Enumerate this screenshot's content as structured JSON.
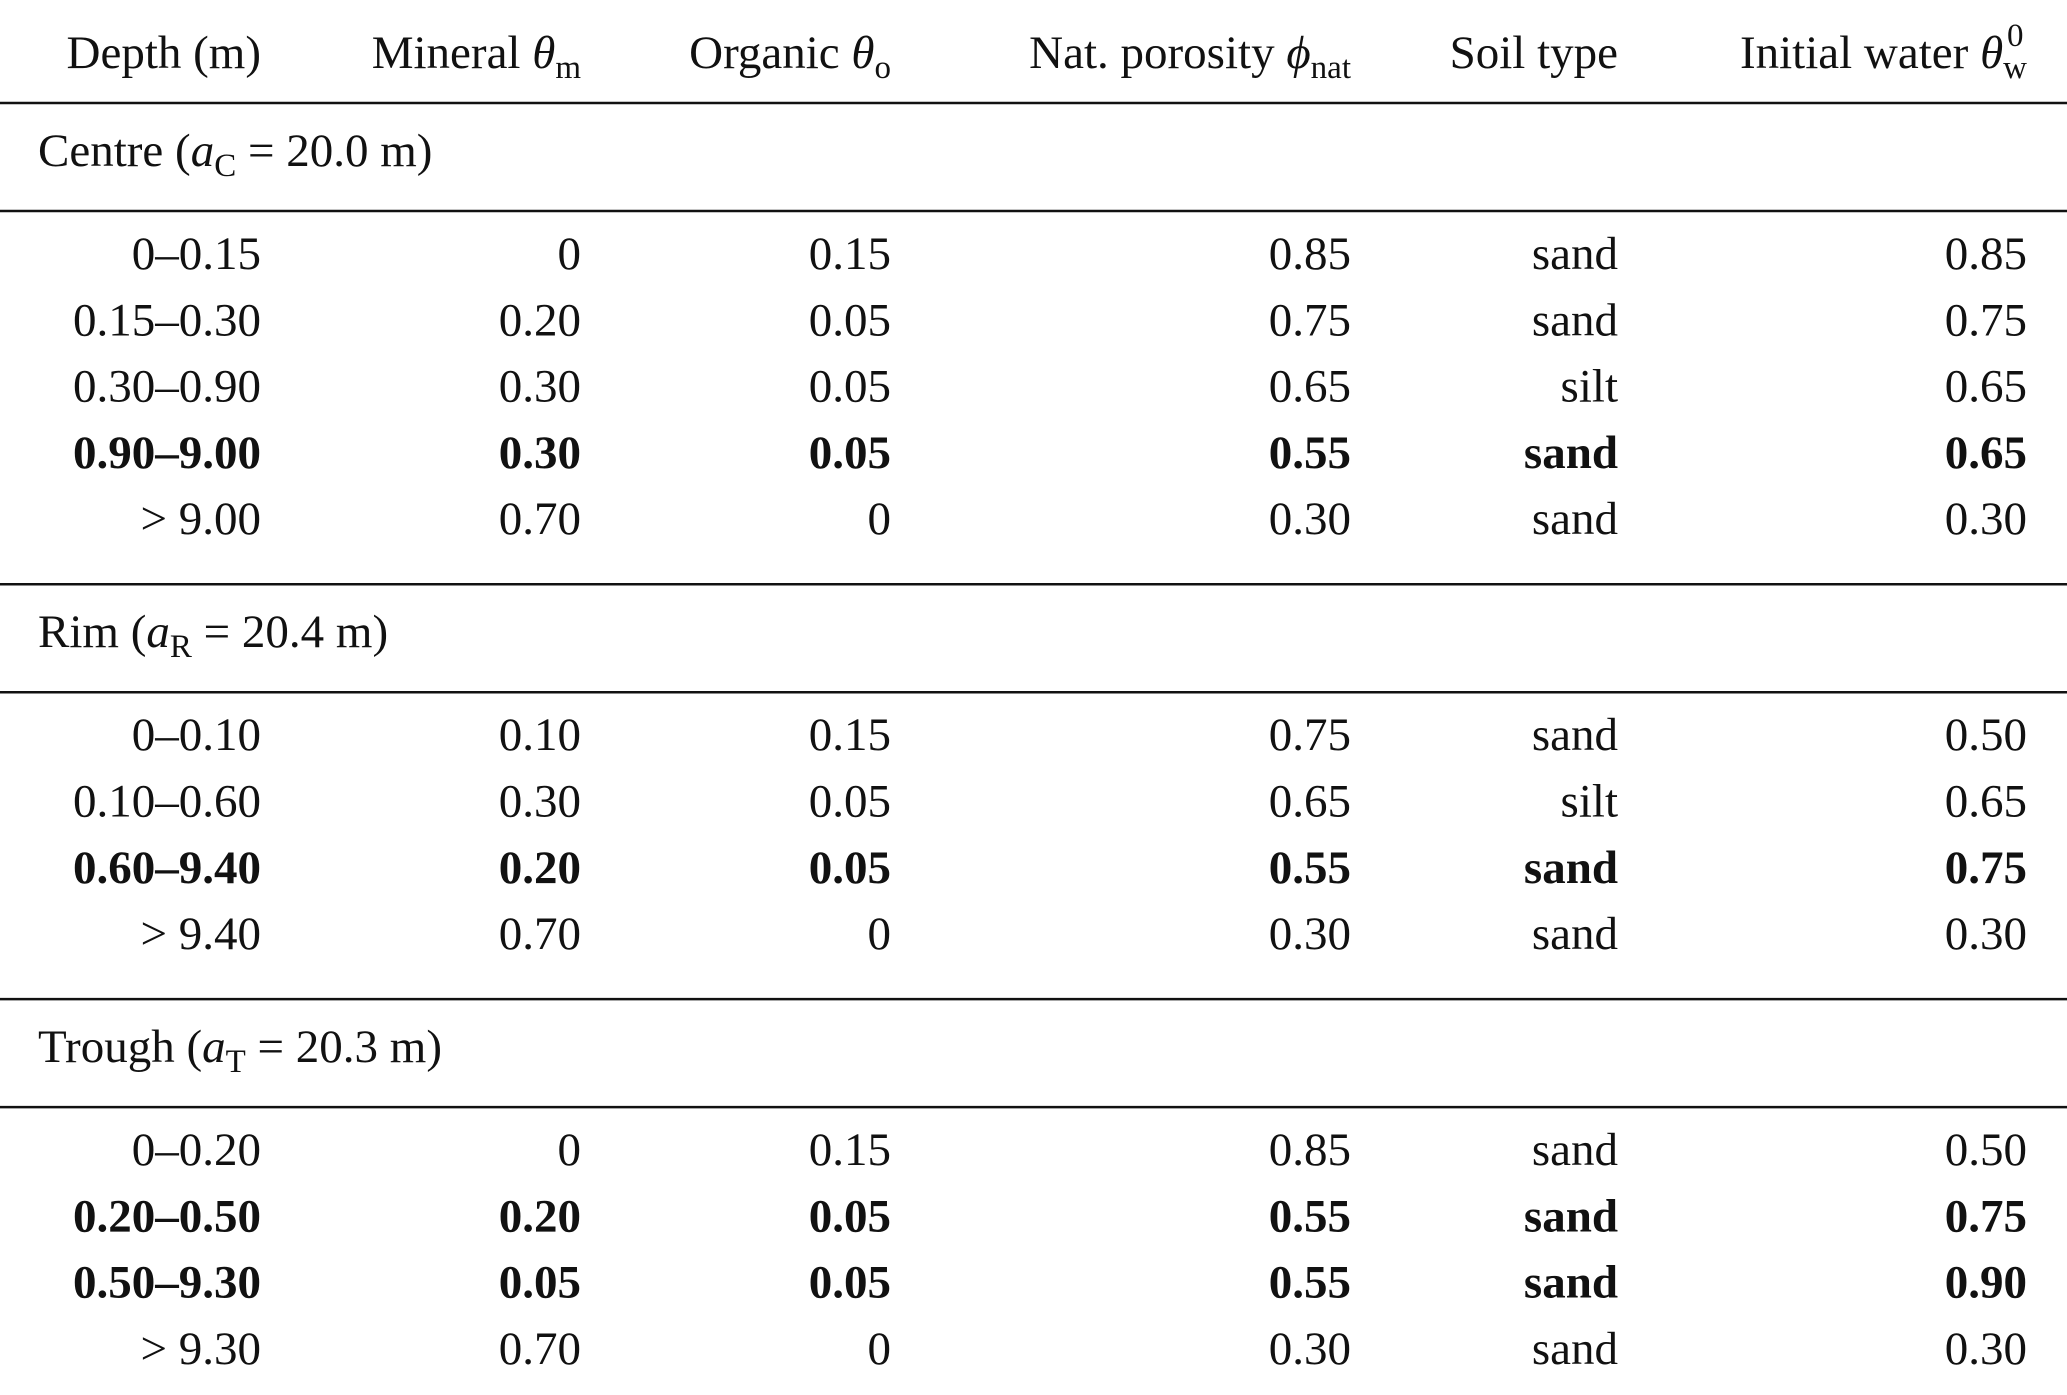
{
  "table": {
    "header": [
      {
        "text": "Depth (m)"
      },
      {
        "text": "Mineral ",
        "symbol": "θ",
        "sub": "m"
      },
      {
        "text": "Organic ",
        "symbol": "θ",
        "sub": "o"
      },
      {
        "text": "Nat. porosity ",
        "symbol": "ϕ",
        "sub": "nat"
      },
      {
        "text": "Soil type"
      },
      {
        "text": "Initial water ",
        "symbol": "θ",
        "sub": "w",
        "sup": "0"
      }
    ],
    "sections": [
      {
        "label": "Centre (",
        "symbol": "a",
        "sub": "C",
        "suffix": " = 20.0 m)",
        "rows": [
          {
            "cells": [
              "0–0.15",
              "0",
              "0.15",
              "0.85",
              "sand",
              "0.85"
            ],
            "bold": false
          },
          {
            "cells": [
              "0.15–0.30",
              "0.20",
              "0.05",
              "0.75",
              "sand",
              "0.75"
            ],
            "bold": false
          },
          {
            "cells": [
              "0.30–0.90",
              "0.30",
              "0.05",
              "0.65",
              "silt",
              "0.65"
            ],
            "bold": false
          },
          {
            "cells": [
              "0.90–9.00",
              "0.30",
              "0.05",
              "0.55",
              "sand",
              "0.65"
            ],
            "bold": true
          },
          {
            "cells": [
              "> 9.00",
              "0.70",
              "0",
              "0.30",
              "sand",
              "0.30"
            ],
            "bold": false
          }
        ]
      },
      {
        "label": "Rim (",
        "symbol": "a",
        "sub": "R",
        "suffix": " = 20.4 m)",
        "rows": [
          {
            "cells": [
              "0–0.10",
              "0.10",
              "0.15",
              "0.75",
              "sand",
              "0.50"
            ],
            "bold": false
          },
          {
            "cells": [
              "0.10–0.60",
              "0.30",
              "0.05",
              "0.65",
              "silt",
              "0.65"
            ],
            "bold": false
          },
          {
            "cells": [
              "0.60–9.40",
              "0.20",
              "0.05",
              "0.55",
              "sand",
              "0.75"
            ],
            "bold": true
          },
          {
            "cells": [
              "> 9.40",
              "0.70",
              "0",
              "0.30",
              "sand",
              "0.30"
            ],
            "bold": false
          }
        ]
      },
      {
        "label": "Trough (",
        "symbol": "a",
        "sub": "T",
        "suffix": " = 20.3 m)",
        "rows": [
          {
            "cells": [
              "0–0.20",
              "0",
              "0.15",
              "0.85",
              "sand",
              "0.50"
            ],
            "bold": false
          },
          {
            "cells": [
              "0.20–0.50",
              "0.20",
              "0.05",
              "0.55",
              "sand",
              "0.75"
            ],
            "bold": true
          },
          {
            "cells": [
              "0.50–9.30",
              "0.05",
              "0.05",
              "0.55",
              "sand",
              "0.90"
            ],
            "bold": true
          },
          {
            "cells": [
              "> 9.30",
              "0.70",
              "0",
              "0.30",
              "sand",
              "0.30"
            ],
            "bold": false
          }
        ]
      }
    ]
  }
}
